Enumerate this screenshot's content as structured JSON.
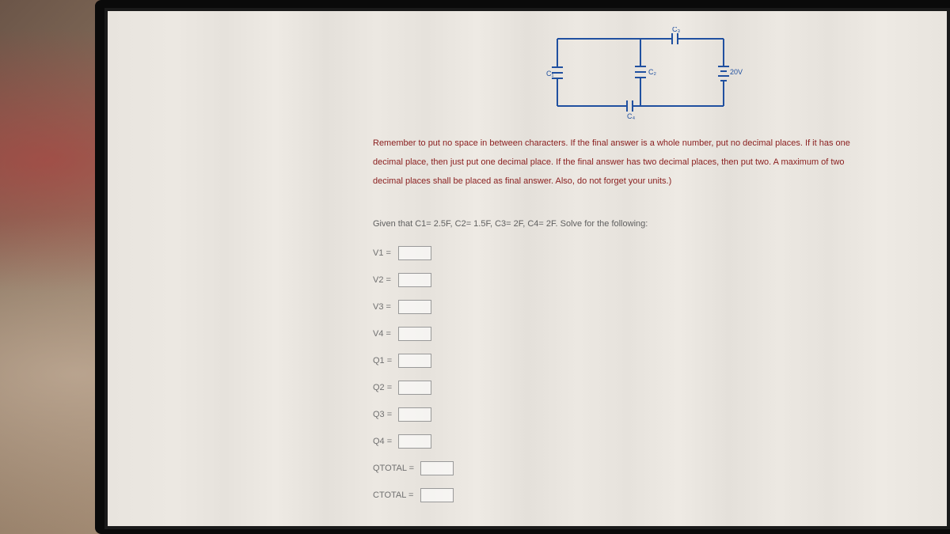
{
  "circuit": {
    "stroke_color": "#2050a0",
    "stroke_width": 2,
    "labels": {
      "c1": "C₁",
      "c2": "C₂",
      "c3": "C₃",
      "c4": "C₄",
      "voltage": "20V"
    }
  },
  "instructions": {
    "line1": "Remember to put no space in between characters. If the final answer is a whole number, put no decimal places. If it has one",
    "line2": "decimal place, then just put one decimal place. If the final answer has two decimal places, then put two. A maximum of two",
    "line3": "decimal places shall be placed as final answer. Also, do not forget your units.)"
  },
  "given_text": "Given that C1= 2.5F, C2= 1.5F, C3= 2F, C4= 2F. Solve for the following:",
  "fields": [
    {
      "label": "V1 =",
      "wide": false
    },
    {
      "label": "V2 =",
      "wide": false
    },
    {
      "label": "V3 =",
      "wide": false
    },
    {
      "label": "V4 =",
      "wide": false
    },
    {
      "label": "Q1 =",
      "wide": false
    },
    {
      "label": "Q2 =",
      "wide": false
    },
    {
      "label": "Q3 =",
      "wide": false
    },
    {
      "label": "Q4 =",
      "wide": false
    },
    {
      "label": "QTOTAL =",
      "wide": true
    },
    {
      "label": "CTOTAL =",
      "wide": true
    }
  ],
  "colors": {
    "instruction_text": "#8b2020",
    "body_text": "#606060",
    "screen_bg": "#e8e4de"
  }
}
